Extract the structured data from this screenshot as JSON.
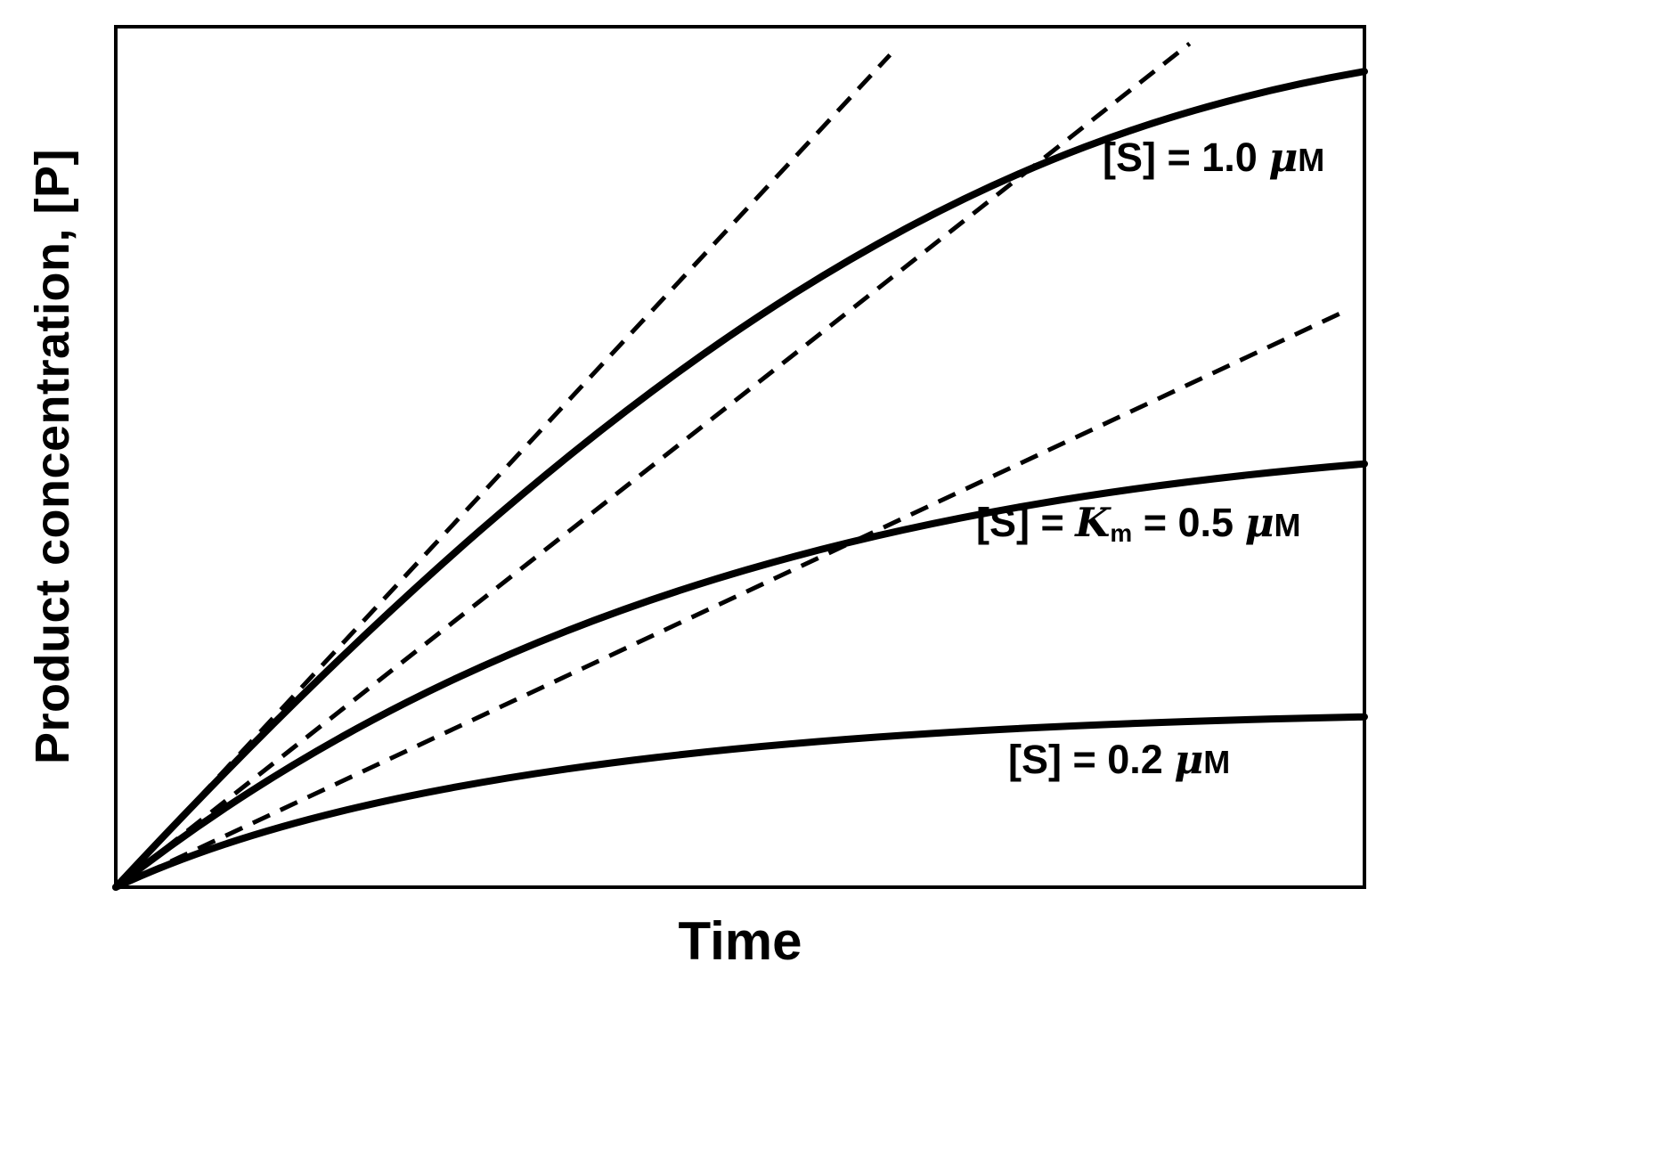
{
  "figure": {
    "colors": {
      "background": "#ffffff",
      "ink": "#000000"
    }
  },
  "chart_data": {
    "type": "line",
    "title": "",
    "xlabel": "Time",
    "ylabel": "Product concentration, [P]",
    "x_range": [
      0,
      1
    ],
    "y_range": [
      0,
      1
    ],
    "grid": false,
    "axis_ticks": "none",
    "note": "No numeric tick labels shown; point values are fractions of the plotted axis ranges estimated from the drawing.",
    "series": [
      {
        "id": "s-1.0",
        "label_text": "[S] = 1.0 μM",
        "substrate_conc_uM": 1.0,
        "initial_slope_v0": 1.56,
        "line_style": "solid",
        "bezier": [
          [
            0.42,
            0.655
          ],
          [
            0.7,
            0.873
          ],
          [
            1.0,
            0.948
          ]
        ],
        "points": {
          "x": [
            0,
            0.29,
            0.55,
            0.78,
            1.0
          ],
          "y": [
            0,
            0.41,
            0.69,
            0.86,
            0.95
          ]
        }
      },
      {
        "id": "s-0.5",
        "label_text": "[S] = Km = 0.5 μM",
        "substrate_conc_uM": 0.5,
        "initial_slope_v0": 1.14,
        "line_style": "solid",
        "bezier": [
          [
            0.3,
            0.342
          ],
          [
            0.65,
            0.45
          ],
          [
            1.0,
            0.492
          ]
        ],
        "points": {
          "x": [
            0,
            0.23,
            0.48,
            0.74,
            1.0
          ],
          "y": [
            0,
            0.21,
            0.36,
            0.45,
            0.49
          ]
        }
      },
      {
        "id": "s-0.2",
        "label_text": "[S] = 0.2 μM",
        "substrate_conc_uM": 0.2,
        "initial_slope_v0": 0.68,
        "line_style": "solid",
        "bezier": [
          [
            0.22,
            0.15
          ],
          [
            0.6,
            0.186
          ],
          [
            1.0,
            0.198
          ]
        ],
        "points": {
          "x": [
            0,
            0.19,
            0.43,
            0.71,
            1.0
          ],
          "y": [
            0,
            0.09,
            0.15,
            0.18,
            0.2
          ]
        }
      }
    ],
    "tangents": [
      {
        "for": "s-1.0",
        "slope": 1.56,
        "t_end": 0.62,
        "line_style": "dashed"
      },
      {
        "for": "s-0.5",
        "slope": 1.14,
        "t_end": 0.86,
        "line_style": "dashed"
      },
      {
        "for": "s-0.2",
        "slope": 0.68,
        "t_end": 0.98,
        "line_style": "dashed"
      }
    ],
    "annotations": [
      {
        "text": "[S] = 1.0 μM",
        "parts": [
          "[S] = 1.0 ",
          "μ",
          "M"
        ]
      },
      {
        "text": "[S] = Km = 0.5 μM",
        "parts": [
          "[S] = ",
          "K",
          "m",
          " = 0.5 ",
          "μ",
          "M"
        ]
      },
      {
        "text": "[S] = 0.2 μM",
        "parts": [
          "[S] = 0.2 ",
          "μ",
          "M"
        ]
      }
    ]
  }
}
